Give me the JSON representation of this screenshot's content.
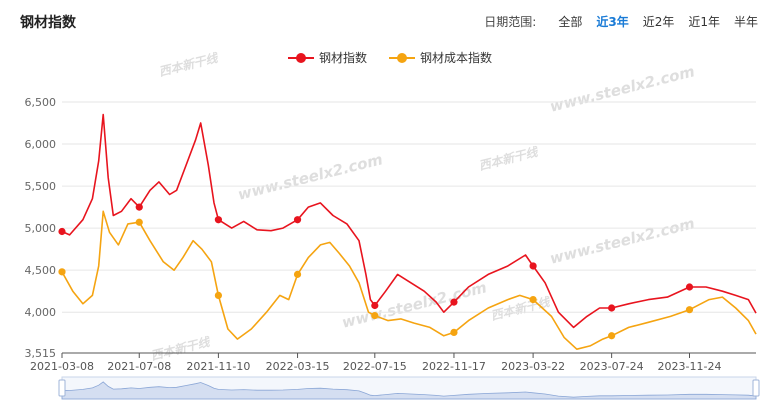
{
  "page": {
    "title": "钢材指数"
  },
  "range": {
    "label": "日期范围:",
    "options": [
      "全部",
      "近3年",
      "近2年",
      "近1年",
      "半年"
    ],
    "active": 1
  },
  "watermark": {
    "texts": [
      "www.steelx2.com",
      "西本新干线"
    ]
  },
  "colors": {
    "steel": "#e8141e",
    "cost": "#f5a411"
  },
  "chart_data": {
    "type": "line",
    "title": "",
    "xlabel": "",
    "ylabel": "",
    "ylim": [
      3515,
      6500
    ],
    "yticks": [
      3515,
      4000,
      4500,
      5000,
      5500,
      6000,
      6500
    ],
    "ytick_labels": [
      "3,515",
      "4,000",
      "4,500",
      "5,000",
      "5,500",
      "6,000",
      "6,500"
    ],
    "xticks": [
      "2021-03-08",
      "2021-07-08",
      "2021-11-10",
      "2022-03-15",
      "2022-07-15",
      "2022-11-17",
      "2023-03-22",
      "2023-07-24",
      "2023-11-24"
    ],
    "grid": "horizontal",
    "legend_position": "top-center",
    "x_start": "2021-03-08",
    "x_end": "2024-03-08",
    "series": [
      {
        "name": "钢材指数",
        "key": "steel",
        "points": [
          [
            "2021-03-08",
            4960
          ],
          [
            "2021-03-20",
            4920
          ],
          [
            "2021-04-10",
            5100
          ],
          [
            "2021-04-25",
            5350
          ],
          [
            "2021-05-05",
            5800
          ],
          [
            "2021-05-12",
            6350
          ],
          [
            "2021-05-20",
            5600
          ],
          [
            "2021-05-28",
            5150
          ],
          [
            "2021-06-10",
            5200
          ],
          [
            "2021-06-25",
            5350
          ],
          [
            "2021-07-08",
            5250
          ],
          [
            "2021-07-25",
            5450
          ],
          [
            "2021-08-08",
            5550
          ],
          [
            "2021-08-25",
            5400
          ],
          [
            "2021-09-05",
            5450
          ],
          [
            "2021-09-20",
            5750
          ],
          [
            "2021-10-05",
            6050
          ],
          [
            "2021-10-13",
            6250
          ],
          [
            "2021-10-25",
            5750
          ],
          [
            "2021-11-03",
            5300
          ],
          [
            "2021-11-10",
            5100
          ],
          [
            "2021-12-01",
            5000
          ],
          [
            "2021-12-20",
            5080
          ],
          [
            "2022-01-10",
            4980
          ],
          [
            "2022-02-01",
            4970
          ],
          [
            "2022-02-20",
            5000
          ],
          [
            "2022-03-15",
            5100
          ],
          [
            "2022-04-01",
            5250
          ],
          [
            "2022-04-20",
            5300
          ],
          [
            "2022-05-10",
            5150
          ],
          [
            "2022-06-01",
            5050
          ],
          [
            "2022-06-20",
            4850
          ],
          [
            "2022-07-01",
            4450
          ],
          [
            "2022-07-08",
            4150
          ],
          [
            "2022-07-15",
            4080
          ],
          [
            "2022-08-01",
            4250
          ],
          [
            "2022-08-20",
            4450
          ],
          [
            "2022-09-10",
            4350
          ],
          [
            "2022-10-01",
            4250
          ],
          [
            "2022-10-20",
            4120
          ],
          [
            "2022-11-01",
            4000
          ],
          [
            "2022-11-17",
            4120
          ],
          [
            "2022-12-10",
            4300
          ],
          [
            "2023-01-10",
            4450
          ],
          [
            "2023-02-10",
            4550
          ],
          [
            "2023-03-10",
            4680
          ],
          [
            "2023-03-22",
            4550
          ],
          [
            "2023-04-10",
            4350
          ],
          [
            "2023-05-01",
            4000
          ],
          [
            "2023-05-25",
            3820
          ],
          [
            "2023-06-15",
            3950
          ],
          [
            "2023-07-05",
            4050
          ],
          [
            "2023-07-24",
            4050
          ],
          [
            "2023-08-20",
            4100
          ],
          [
            "2023-09-20",
            4150
          ],
          [
            "2023-10-20",
            4180
          ],
          [
            "2023-11-24",
            4300
          ],
          [
            "2023-12-20",
            4300
          ],
          [
            "2024-01-15",
            4250
          ],
          [
            "2024-02-05",
            4200
          ],
          [
            "2024-02-25",
            4150
          ],
          [
            "2024-03-08",
            3990
          ]
        ],
        "markers": [
          "2021-03-08",
          "2021-07-08",
          "2021-11-10",
          "2022-03-15",
          "2022-07-15",
          "2022-11-17",
          "2023-03-22",
          "2023-07-24",
          "2023-11-24"
        ]
      },
      {
        "name": "钢材成本指数",
        "key": "cost",
        "points": [
          [
            "2021-03-08",
            4480
          ],
          [
            "2021-03-25",
            4250
          ],
          [
            "2021-04-10",
            4100
          ],
          [
            "2021-04-25",
            4200
          ],
          [
            "2021-05-05",
            4550
          ],
          [
            "2021-05-12",
            5200
          ],
          [
            "2021-05-22",
            4950
          ],
          [
            "2021-06-05",
            4800
          ],
          [
            "2021-06-20",
            5050
          ],
          [
            "2021-07-08",
            5070
          ],
          [
            "2021-07-25",
            4850
          ],
          [
            "2021-08-15",
            4600
          ],
          [
            "2021-09-01",
            4500
          ],
          [
            "2021-09-15",
            4650
          ],
          [
            "2021-10-01",
            4850
          ],
          [
            "2021-10-15",
            4750
          ],
          [
            "2021-10-30",
            4600
          ],
          [
            "2021-11-10",
            4200
          ],
          [
            "2021-11-25",
            3800
          ],
          [
            "2021-12-10",
            3680
          ],
          [
            "2022-01-01",
            3800
          ],
          [
            "2022-01-25",
            4000
          ],
          [
            "2022-02-15",
            4200
          ],
          [
            "2022-03-01",
            4150
          ],
          [
            "2022-03-15",
            4450
          ],
          [
            "2022-04-01",
            4650
          ],
          [
            "2022-04-20",
            4800
          ],
          [
            "2022-05-05",
            4830
          ],
          [
            "2022-05-20",
            4700
          ],
          [
            "2022-06-05",
            4550
          ],
          [
            "2022-06-20",
            4350
          ],
          [
            "2022-07-05",
            4000
          ],
          [
            "2022-07-15",
            3960
          ],
          [
            "2022-08-05",
            3900
          ],
          [
            "2022-08-25",
            3920
          ],
          [
            "2022-09-15",
            3870
          ],
          [
            "2022-10-10",
            3820
          ],
          [
            "2022-11-01",
            3720
          ],
          [
            "2022-11-17",
            3760
          ],
          [
            "2022-12-10",
            3900
          ],
          [
            "2023-01-10",
            4050
          ],
          [
            "2023-02-10",
            4150
          ],
          [
            "2023-03-01",
            4200
          ],
          [
            "2023-03-22",
            4150
          ],
          [
            "2023-04-20",
            3950
          ],
          [
            "2023-05-10",
            3700
          ],
          [
            "2023-05-30",
            3560
          ],
          [
            "2023-06-20",
            3600
          ],
          [
            "2023-07-10",
            3680
          ],
          [
            "2023-07-24",
            3720
          ],
          [
            "2023-08-20",
            3820
          ],
          [
            "2023-09-20",
            3880
          ],
          [
            "2023-10-25",
            3950
          ],
          [
            "2023-11-24",
            4030
          ],
          [
            "2023-12-25",
            4150
          ],
          [
            "2024-01-15",
            4180
          ],
          [
            "2024-02-05",
            4050
          ],
          [
            "2024-02-25",
            3900
          ],
          [
            "2024-03-08",
            3740
          ]
        ],
        "markers": [
          "2021-03-08",
          "2021-07-08",
          "2021-11-10",
          "2022-03-15",
          "2022-07-15",
          "2022-11-17",
          "2023-03-22",
          "2023-07-24",
          "2023-11-24"
        ]
      }
    ]
  }
}
